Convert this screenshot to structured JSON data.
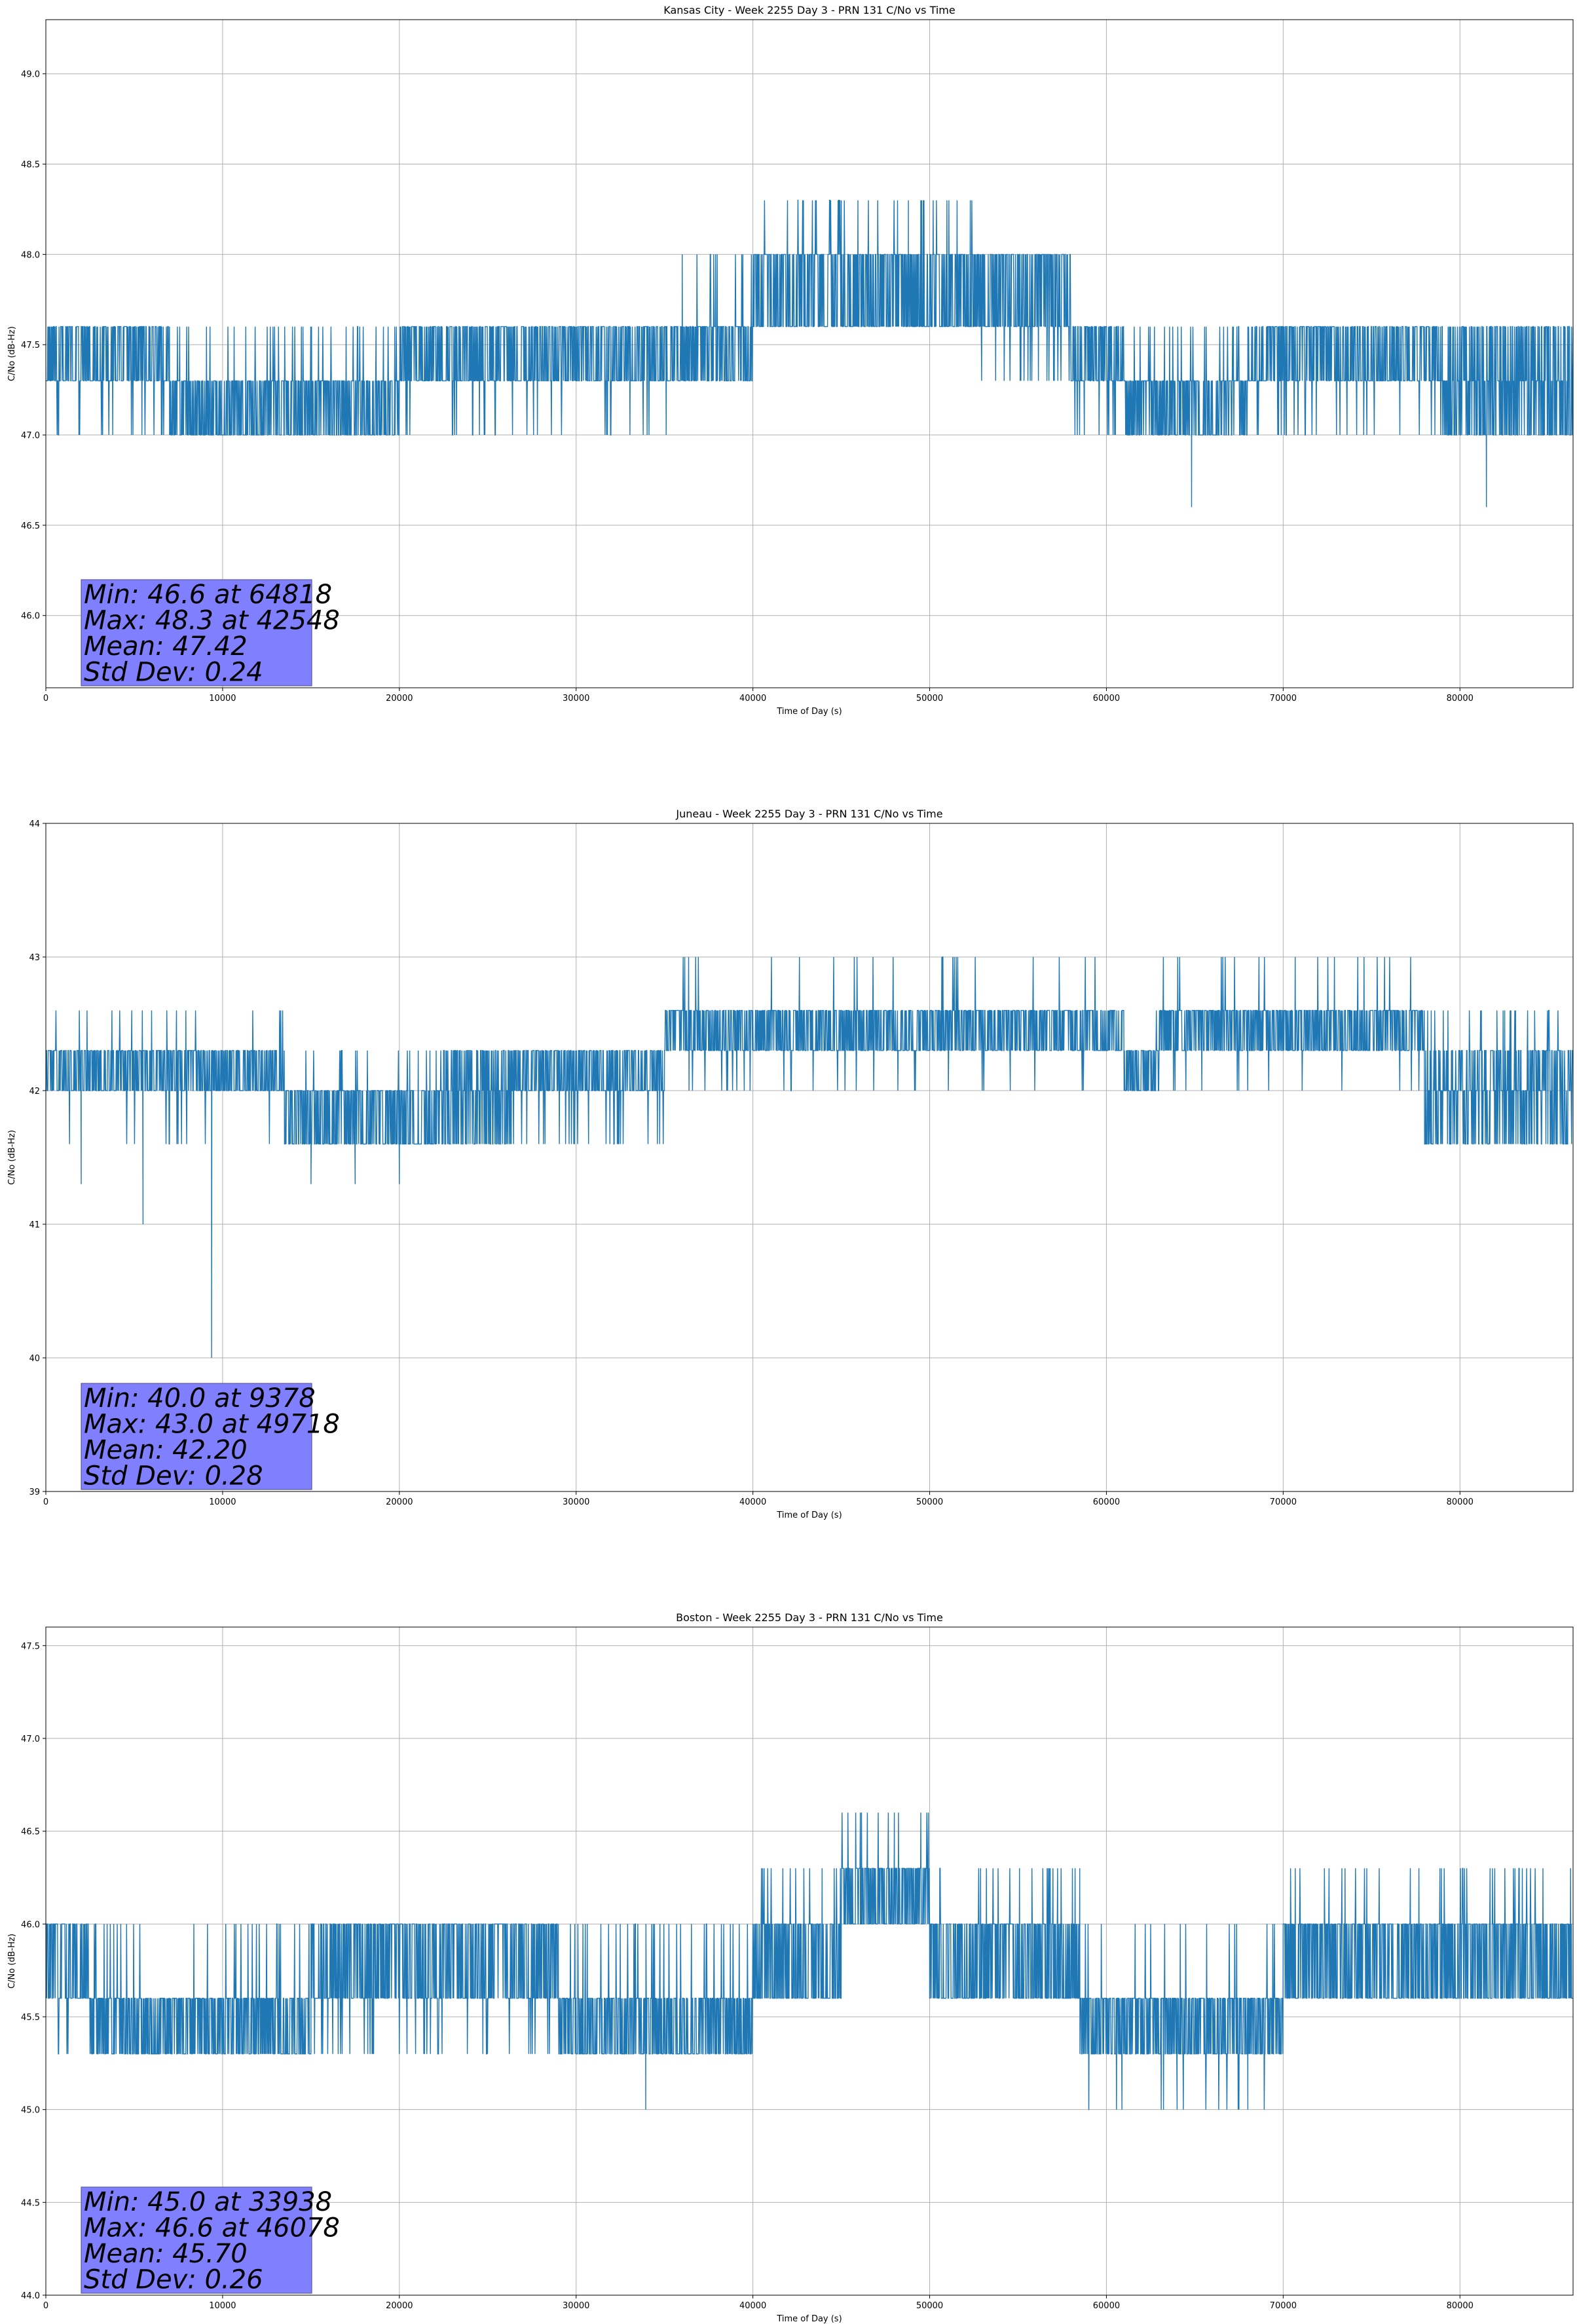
{
  "chart_data": [
    {
      "type": "line",
      "title": "Kansas City - Week 2255 Day 3 - PRN 131 C/No vs Time",
      "xlabel": "Time of Day (s)",
      "ylabel": "C/No (dB-Hz)",
      "xlim": [
        0,
        86400
      ],
      "ylim": [
        45.6,
        49.3
      ],
      "xticks": [
        0,
        10000,
        20000,
        30000,
        40000,
        50000,
        60000,
        70000,
        80000
      ],
      "yticks": [
        46.0,
        46.5,
        47.0,
        47.5,
        48.0,
        48.5,
        49.0
      ],
      "ytick_decimals": 1,
      "grid": true,
      "color": "#1f77b4",
      "stats": [
        "Min: 46.6 at 64818",
        "Max: 48.3 at 42548",
        "Mean: 47.42",
        "Std Dev: 0.24"
      ],
      "series": [
        {
          "segments": [
            {
              "x0": 0,
              "x1": 7000,
              "levels": [
                47.3,
                47.6
              ],
              "flicker": [
                47.0
              ]
            },
            {
              "x0": 7000,
              "x1": 20000,
              "levels": [
                47.0,
                47.3
              ],
              "flicker": [
                47.6
              ]
            },
            {
              "x0": 20000,
              "x1": 36000,
              "levels": [
                47.3,
                47.6
              ],
              "flicker": [
                47.0
              ]
            },
            {
              "x0": 36000,
              "x1": 40000,
              "levels": [
                47.3,
                47.6
              ],
              "flicker": [
                48.0
              ]
            },
            {
              "x0": 40000,
              "x1": 52500,
              "levels": [
                47.6,
                48.0
              ],
              "flicker": [
                48.3
              ]
            },
            {
              "x0": 52500,
              "x1": 58000,
              "levels": [
                47.6,
                48.0
              ],
              "flicker": [
                47.3
              ]
            },
            {
              "x0": 58000,
              "x1": 61000,
              "levels": [
                47.3,
                47.6
              ],
              "flicker": [
                47.0
              ]
            },
            {
              "x0": 61000,
              "x1": 68000,
              "levels": [
                47.0,
                47.3
              ],
              "flicker": [
                47.6
              ]
            },
            {
              "x0": 68000,
              "x1": 79000,
              "levels": [
                47.3,
                47.6
              ],
              "flicker": [
                47.0
              ]
            },
            {
              "x0": 79000,
              "x1": 86400,
              "levels": [
                47.0,
                47.3,
                47.6
              ],
              "flicker": []
            }
          ],
          "spikes": [
            [
              64818,
              46.6
            ],
            [
              81500,
              46.6
            ],
            [
              42548,
              48.3
            ],
            [
              45000,
              48.3
            ],
            [
              48800,
              48.3
            ],
            [
              49500,
              48.3
            ],
            [
              50200,
              48.3
            ]
          ]
        }
      ]
    },
    {
      "type": "line",
      "title": "Juneau - Week 2255 Day 3 - PRN 131 C/No vs Time",
      "xlabel": "Time of Day (s)",
      "ylabel": "C/No (dB-Hz)",
      "xlim": [
        0,
        86400
      ],
      "ylim": [
        39,
        44
      ],
      "xticks": [
        0,
        10000,
        20000,
        30000,
        40000,
        50000,
        60000,
        70000,
        80000
      ],
      "yticks": [
        39,
        40,
        41,
        42,
        43,
        44
      ],
      "ytick_decimals": 0,
      "grid": true,
      "color": "#1f77b4",
      "stats": [
        "Min: 40.0 at 9378",
        "Max: 43.0 at 49718",
        "Mean: 42.20",
        "Std Dev: 0.28"
      ],
      "series": [
        {
          "segments": [
            {
              "x0": 0,
              "x1": 13500,
              "levels": [
                42.0,
                42.3
              ],
              "flicker": [
                41.6,
                42.6
              ]
            },
            {
              "x0": 13500,
              "x1": 22500,
              "levels": [
                41.6,
                42.0
              ],
              "flicker": [
                42.3
              ]
            },
            {
              "x0": 22500,
              "x1": 26500,
              "levels": [
                41.6,
                42.0,
                42.3
              ],
              "flicker": []
            },
            {
              "x0": 26500,
              "x1": 35000,
              "levels": [
                42.0,
                42.3
              ],
              "flicker": [
                41.6
              ]
            },
            {
              "x0": 35000,
              "x1": 61000,
              "levels": [
                42.3,
                42.6
              ],
              "flicker": [
                42.0,
                43.0
              ]
            },
            {
              "x0": 61000,
              "x1": 63000,
              "levels": [
                42.0,
                42.3
              ],
              "flicker": [
                42.6
              ]
            },
            {
              "x0": 63000,
              "x1": 78000,
              "levels": [
                42.3,
                42.6
              ],
              "flicker": [
                42.0,
                43.0
              ]
            },
            {
              "x0": 78000,
              "x1": 86400,
              "levels": [
                41.6,
                42.0,
                42.3
              ],
              "flicker": [
                42.6
              ]
            }
          ],
          "spikes": [
            [
              9378,
              40.0
            ],
            [
              5500,
              41.0
            ],
            [
              2000,
              41.3
            ],
            [
              15000,
              41.3
            ],
            [
              17500,
              41.3
            ],
            [
              20000,
              41.3
            ]
          ]
        }
      ]
    },
    {
      "type": "line",
      "title": "Boston - Week 2255 Day 3 - PRN 131 C/No vs Time",
      "xlabel": "Time of Day (s)",
      "ylabel": "C/No (dB-Hz)",
      "xlim": [
        0,
        86400
      ],
      "ylim": [
        44.0,
        47.6
      ],
      "xticks": [
        0,
        10000,
        20000,
        30000,
        40000,
        50000,
        60000,
        70000,
        80000
      ],
      "yticks": [
        44.0,
        44.5,
        45.0,
        45.5,
        46.0,
        46.5,
        47.0,
        47.5
      ],
      "ytick_decimals": 1,
      "grid": true,
      "color": "#1f77b4",
      "stats": [
        "Min: 45.0 at 33938",
        "Max: 46.6 at 46078",
        "Mean: 45.70",
        "Std Dev: 0.26"
      ],
      "series": [
        {
          "segments": [
            {
              "x0": 0,
              "x1": 2500,
              "levels": [
                45.6,
                46.0
              ],
              "flicker": [
                45.3
              ]
            },
            {
              "x0": 2500,
              "x1": 15000,
              "levels": [
                45.3,
                45.6
              ],
              "flicker": [
                46.0
              ]
            },
            {
              "x0": 15000,
              "x1": 29000,
              "levels": [
                45.6,
                46.0
              ],
              "flicker": [
                45.3
              ]
            },
            {
              "x0": 29000,
              "x1": 40000,
              "levels": [
                45.3,
                45.6
              ],
              "flicker": [
                46.0
              ]
            },
            {
              "x0": 40000,
              "x1": 45000,
              "levels": [
                45.6,
                46.0
              ],
              "flicker": [
                46.3
              ]
            },
            {
              "x0": 45000,
              "x1": 50000,
              "levels": [
                46.0,
                46.3
              ],
              "flicker": [
                46.6
              ]
            },
            {
              "x0": 50000,
              "x1": 58500,
              "levels": [
                45.6,
                46.0
              ],
              "flicker": [
                46.3
              ]
            },
            {
              "x0": 58500,
              "x1": 70000,
              "levels": [
                45.3,
                45.6
              ],
              "flicker": [
                45.0,
                46.0
              ]
            },
            {
              "x0": 70000,
              "x1": 86400,
              "levels": [
                45.6,
                46.0
              ],
              "flicker": [
                46.3
              ]
            }
          ],
          "spikes": [
            [
              33938,
              45.0
            ],
            [
              46078,
              46.6
            ],
            [
              48000,
              46.6
            ],
            [
              49500,
              46.6
            ],
            [
              59000,
              45.0
            ],
            [
              64000,
              45.0
            ],
            [
              68000,
              45.0
            ]
          ]
        }
      ]
    }
  ]
}
